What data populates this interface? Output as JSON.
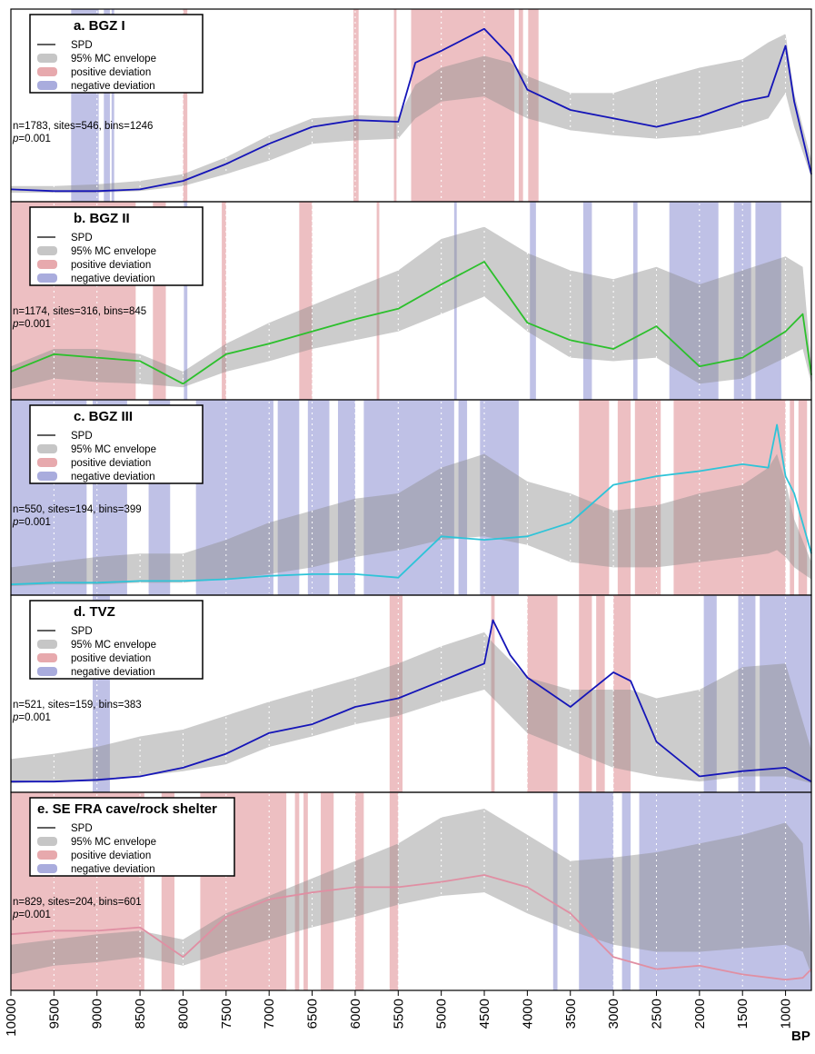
{
  "colors": {
    "envelope": "#c6c6c6",
    "positive": "#e7a9ad",
    "negative": "#a9acdd",
    "frame": "#000000"
  },
  "legend_labels": {
    "spd": "SPD",
    "envelope": "95% MC envelope",
    "positive": "positive deviation",
    "negative": "negative deviation"
  },
  "chart_data": [
    {
      "type": "line",
      "title": "a. BGZ I",
      "stats": "n=1783, sites=546, bins=1246",
      "p_label": "p",
      "p_value": "=0.001",
      "spd_color": "#1515b8",
      "x": [
        10000,
        9500,
        9000,
        8500,
        8000,
        7500,
        7000,
        6500,
        6000,
        5500,
        5300,
        5000,
        4500,
        4200,
        4000,
        3500,
        3000,
        2500,
        2000,
        1500,
        1200,
        1000,
        900,
        700
      ],
      "spd": [
        0.03,
        0.02,
        0.02,
        0.03,
        0.08,
        0.18,
        0.3,
        0.4,
        0.44,
        0.43,
        0.78,
        0.85,
        0.98,
        0.82,
        0.62,
        0.5,
        0.45,
        0.4,
        0.46,
        0.55,
        0.58,
        0.88,
        0.55,
        0.12
      ],
      "env_low": [
        0.01,
        0.01,
        0.01,
        0.02,
        0.05,
        0.12,
        0.2,
        0.3,
        0.32,
        0.33,
        0.45,
        0.55,
        0.58,
        0.5,
        0.45,
        0.38,
        0.35,
        0.33,
        0.35,
        0.4,
        0.45,
        0.6,
        0.4,
        0.1
      ],
      "env_high": [
        0.05,
        0.05,
        0.06,
        0.08,
        0.12,
        0.22,
        0.35,
        0.45,
        0.47,
        0.46,
        0.65,
        0.75,
        0.82,
        0.78,
        0.7,
        0.6,
        0.6,
        0.68,
        0.75,
        0.8,
        0.9,
        0.95,
        0.6,
        0.2
      ],
      "positive_deviation": [
        [
          8000,
          7950
        ],
        [
          6020,
          5960
        ],
        [
          5550,
          5520
        ],
        [
          5350,
          4150
        ],
        [
          4100,
          4050
        ],
        [
          3990,
          3870
        ]
      ],
      "negative_deviation": [
        [
          9300,
          8980
        ],
        [
          8920,
          8850
        ],
        [
          8830,
          8800
        ]
      ]
    },
    {
      "type": "line",
      "title": "b. BGZ II",
      "stats": "n=1174, sites=316, bins=845",
      "p_label": "p",
      "p_value": "=0.001",
      "spd_color": "#2cc02c",
      "x": [
        10000,
        9500,
        9000,
        8500,
        8000,
        7500,
        7000,
        6500,
        6000,
        5500,
        5000,
        4500,
        4000,
        3500,
        3000,
        2500,
        2000,
        1500,
        1000,
        800,
        700
      ],
      "spd": [
        0.12,
        0.22,
        0.2,
        0.18,
        0.05,
        0.22,
        0.28,
        0.35,
        0.42,
        0.48,
        0.62,
        0.75,
        0.4,
        0.3,
        0.25,
        0.38,
        0.15,
        0.2,
        0.35,
        0.45,
        0.1
      ],
      "env_low": [
        0.02,
        0.08,
        0.06,
        0.05,
        0.03,
        0.12,
        0.18,
        0.25,
        0.3,
        0.35,
        0.45,
        0.55,
        0.35,
        0.2,
        0.18,
        0.2,
        0.05,
        0.08,
        0.2,
        0.25,
        0.05
      ],
      "env_high": [
        0.15,
        0.25,
        0.25,
        0.22,
        0.12,
        0.28,
        0.4,
        0.5,
        0.6,
        0.7,
        0.88,
        0.95,
        0.8,
        0.7,
        0.65,
        0.72,
        0.62,
        0.7,
        0.78,
        0.72,
        0.15
      ],
      "positive_deviation": [
        [
          10000,
          8550
        ],
        [
          8350,
          8200
        ],
        [
          7550,
          7500
        ],
        [
          6650,
          6500
        ],
        [
          5750,
          5720
        ]
      ],
      "negative_deviation": [
        [
          7990,
          7950
        ],
        [
          4850,
          4820
        ],
        [
          3970,
          3900
        ],
        [
          3350,
          3250
        ],
        [
          2770,
          2720
        ],
        [
          2350,
          1780
        ],
        [
          1600,
          1400
        ],
        [
          1350,
          1050
        ]
      ]
    },
    {
      "type": "line",
      "title": "c. BGZ III",
      "stats": "n=550, sites=194, bins=399",
      "p_label": "p",
      "p_value": "=0.001",
      "spd_color": "#2ec4d8",
      "x": [
        10000,
        9500,
        9000,
        8500,
        8000,
        7500,
        7000,
        6500,
        6000,
        5500,
        5000,
        4500,
        4000,
        3500,
        3000,
        2500,
        2000,
        1500,
        1200,
        1100,
        1000,
        900,
        700
      ],
      "spd": [
        0.02,
        0.03,
        0.03,
        0.04,
        0.04,
        0.05,
        0.07,
        0.08,
        0.08,
        0.06,
        0.3,
        0.28,
        0.3,
        0.38,
        0.6,
        0.65,
        0.68,
        0.72,
        0.7,
        0.95,
        0.65,
        0.55,
        0.2
      ],
      "env_low": [
        0.01,
        0.02,
        0.02,
        0.03,
        0.03,
        0.05,
        0.08,
        0.12,
        0.18,
        0.22,
        0.28,
        0.3,
        0.25,
        0.15,
        0.12,
        0.12,
        0.15,
        0.18,
        0.2,
        0.22,
        0.18,
        0.12,
        0.05
      ],
      "env_high": [
        0.12,
        0.15,
        0.18,
        0.2,
        0.2,
        0.28,
        0.38,
        0.45,
        0.52,
        0.55,
        0.7,
        0.78,
        0.62,
        0.55,
        0.45,
        0.48,
        0.55,
        0.6,
        0.7,
        0.78,
        0.62,
        0.4,
        0.15
      ],
      "positive_deviation": [
        [
          3400,
          3050
        ],
        [
          2950,
          2800
        ],
        [
          2750,
          2450
        ],
        [
          2300,
          1000
        ],
        [
          950,
          900
        ],
        [
          850,
          750
        ]
      ],
      "negative_deviation": [
        [
          10000,
          9120
        ],
        [
          9050,
          8650
        ],
        [
          8400,
          8150
        ],
        [
          7850,
          6950
        ],
        [
          6900,
          6650
        ],
        [
          6550,
          6300
        ],
        [
          6200,
          6000
        ],
        [
          5900,
          4850
        ],
        [
          4800,
          4700
        ],
        [
          4550,
          4100
        ]
      ]
    },
    {
      "type": "line",
      "title": "d. TVZ",
      "stats": "n=521, sites=159, bins=383",
      "p_label": "p",
      "p_value": "=0.001",
      "spd_color": "#1515b8",
      "x": [
        10000,
        9500,
        9000,
        8500,
        8000,
        7500,
        7000,
        6500,
        6000,
        5500,
        5000,
        4500,
        4400,
        4200,
        4000,
        3500,
        3000,
        2800,
        2500,
        2000,
        1500,
        1000,
        700
      ],
      "spd": [
        0.02,
        0.02,
        0.03,
        0.05,
        0.1,
        0.18,
        0.3,
        0.35,
        0.45,
        0.5,
        0.6,
        0.7,
        0.95,
        0.75,
        0.62,
        0.45,
        0.65,
        0.6,
        0.25,
        0.05,
        0.08,
        0.1,
        0.02
      ],
      "env_low": [
        0.01,
        0.02,
        0.02,
        0.05,
        0.08,
        0.12,
        0.22,
        0.28,
        0.35,
        0.4,
        0.48,
        0.55,
        0.5,
        0.4,
        0.3,
        0.2,
        0.1,
        0.08,
        0.05,
        0.02,
        0.05,
        0.05,
        0.01
      ],
      "env_high": [
        0.15,
        0.18,
        0.22,
        0.28,
        0.32,
        0.4,
        0.48,
        0.55,
        0.62,
        0.7,
        0.8,
        0.88,
        0.82,
        0.72,
        0.62,
        0.55,
        0.55,
        0.55,
        0.5,
        0.55,
        0.68,
        0.7,
        0.2
      ],
      "positive_deviation": [
        [
          5600,
          5450
        ],
        [
          4420,
          4380
        ],
        [
          4000,
          3650
        ],
        [
          3400,
          3250
        ],
        [
          3200,
          3100
        ],
        [
          3000,
          2800
        ]
      ],
      "negative_deviation": [
        [
          9050,
          8850
        ],
        [
          1950,
          1800
        ],
        [
          1550,
          1350
        ],
        [
          1300,
          700
        ]
      ]
    },
    {
      "type": "line",
      "title": "e. SE FRA cave/rock shelter",
      "stats": "n=829, sites=204, bins=601",
      "p_label": "p",
      "p_value": "=0.001",
      "spd_color": "#e08fa3",
      "x": [
        10000,
        9500,
        9000,
        8500,
        8000,
        7500,
        7000,
        6500,
        6000,
        5500,
        5000,
        4500,
        4000,
        3500,
        3000,
        2500,
        2000,
        1500,
        1000,
        800,
        700
      ],
      "spd": [
        0.28,
        0.3,
        0.3,
        0.32,
        0.15,
        0.38,
        0.48,
        0.52,
        0.55,
        0.55,
        0.58,
        0.62,
        0.55,
        0.4,
        0.15,
        0.08,
        0.1,
        0.05,
        0.02,
        0.03,
        0.08
      ],
      "env_low": [
        0.05,
        0.1,
        0.12,
        0.15,
        0.1,
        0.18,
        0.25,
        0.32,
        0.38,
        0.45,
        0.5,
        0.52,
        0.4,
        0.3,
        0.22,
        0.18,
        0.18,
        0.2,
        0.22,
        0.18,
        0.05
      ],
      "env_high": [
        0.22,
        0.25,
        0.28,
        0.3,
        0.25,
        0.4,
        0.5,
        0.6,
        0.7,
        0.8,
        0.95,
        1.0,
        0.85,
        0.7,
        0.72,
        0.75,
        0.8,
        0.85,
        0.92,
        0.8,
        0.2
      ],
      "positive_deviation": [
        [
          10000,
          8450
        ],
        [
          8250,
          8100
        ],
        [
          7800,
          6800
        ],
        [
          6700,
          6650
        ],
        [
          6600,
          6550
        ],
        [
          6400,
          6250
        ],
        [
          6000,
          5900
        ],
        [
          5600,
          5500
        ]
      ],
      "negative_deviation": [
        [
          3700,
          3650
        ],
        [
          3400,
          3000
        ],
        [
          2900,
          2800
        ],
        [
          2700,
          700
        ]
      ]
    }
  ],
  "x_axis": {
    "ticks": [
      10000,
      9500,
      9000,
      8500,
      8000,
      7500,
      7000,
      6500,
      6000,
      5500,
      5000,
      4500,
      4000,
      3500,
      3000,
      2500,
      2000,
      1500,
      1000
    ],
    "label": "BP"
  }
}
